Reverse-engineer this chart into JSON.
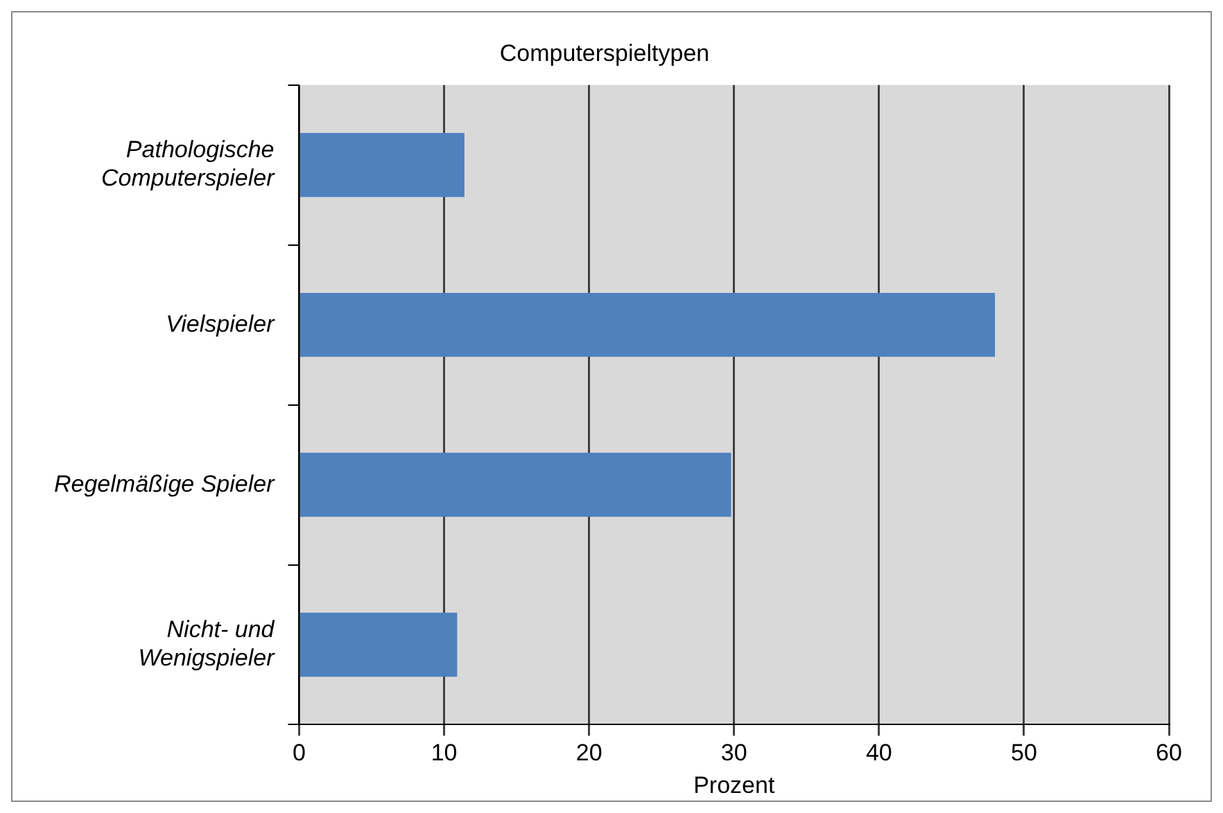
{
  "chart_data": {
    "type": "bar",
    "orientation": "horizontal",
    "title": "Computerspieltypen",
    "xlabel": "Prozent",
    "categories": [
      "Pathologische\nComputerspieler",
      "Vielspieler",
      "Regelmäßige Spieler",
      "Nicht- und\nWenigspieler"
    ],
    "values": [
      11.4,
      48.0,
      29.8,
      10.9
    ],
    "color": "#4f81bd",
    "xlim": [
      0,
      60
    ],
    "xticks": [
      0,
      10,
      20,
      30,
      40,
      50,
      60
    ],
    "grid": "x",
    "legend": false
  }
}
